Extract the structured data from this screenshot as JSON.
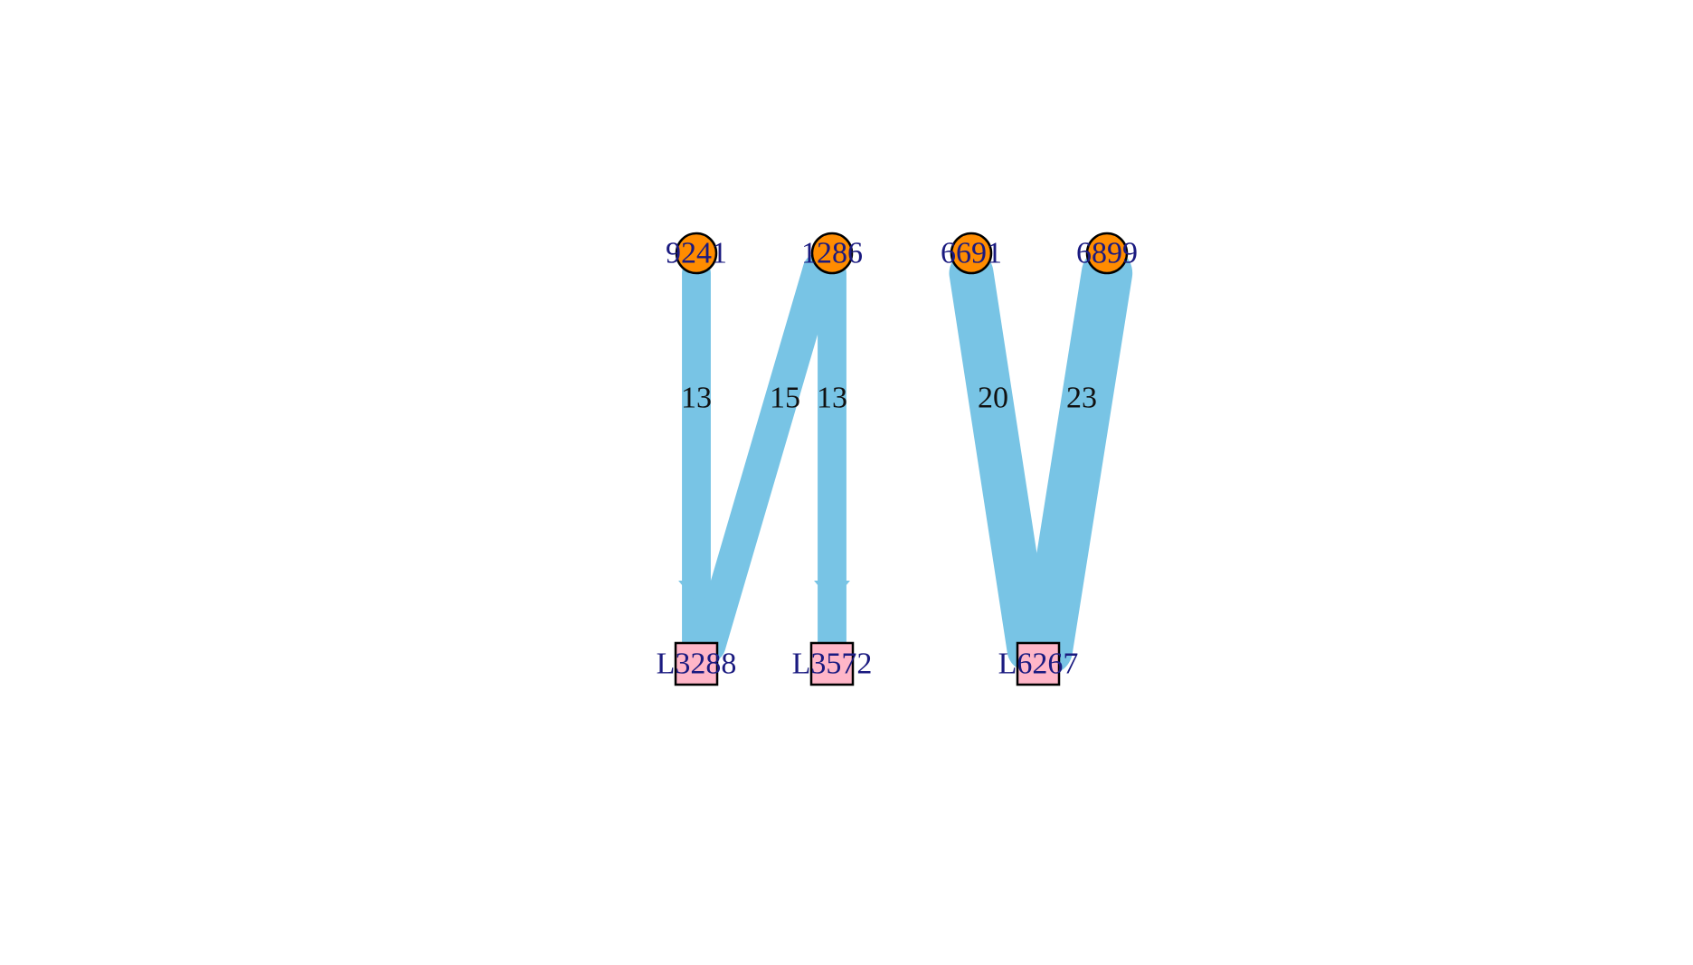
{
  "colors": {
    "edge": "#78c4e5",
    "source_node": "#ff8c00",
    "target_node": "#ffb6c8",
    "node_stroke": "#000000",
    "node_label": "#1a1a80",
    "edge_label": "#111111"
  },
  "nodes": [
    {
      "id": "9241",
      "label": "9241",
      "shape": "circle",
      "role": "source"
    },
    {
      "id": "1286",
      "label": "1286",
      "shape": "circle",
      "role": "source"
    },
    {
      "id": "6691",
      "label": "6691",
      "shape": "circle",
      "role": "source"
    },
    {
      "id": "6899",
      "label": "6899",
      "shape": "circle",
      "role": "source"
    },
    {
      "id": "L3288",
      "label": "L3288",
      "shape": "square",
      "role": "target"
    },
    {
      "id": "L3572",
      "label": "L3572",
      "shape": "square",
      "role": "target"
    },
    {
      "id": "L6267",
      "label": "L6267",
      "shape": "square",
      "role": "target"
    }
  ],
  "edges": [
    {
      "from": "9241",
      "to": "L3288",
      "weight": 13,
      "label": "13"
    },
    {
      "from": "1286",
      "to": "L3288",
      "weight": 15,
      "label": "15"
    },
    {
      "from": "1286",
      "to": "L3572",
      "weight": 13,
      "label": "13"
    },
    {
      "from": "6691",
      "to": "L6267",
      "weight": 20,
      "label": "20"
    },
    {
      "from": "6899",
      "to": "L6267",
      "weight": 23,
      "label": "23"
    }
  ]
}
